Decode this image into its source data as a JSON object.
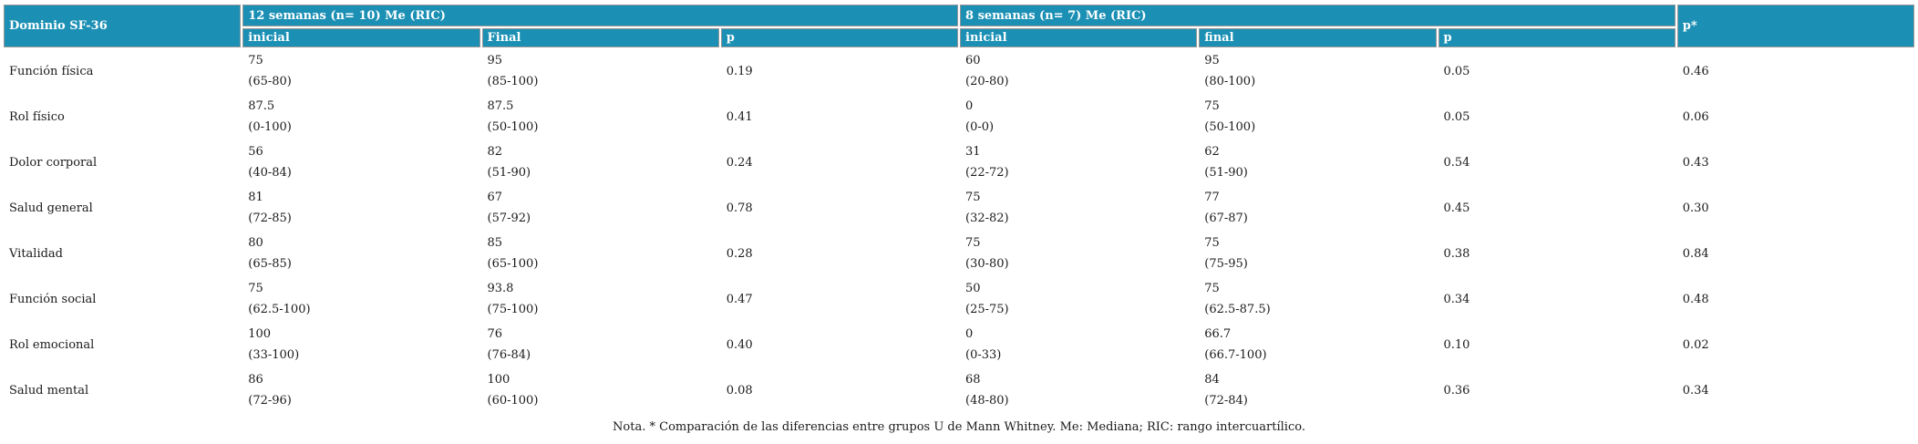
{
  "table": {
    "corner_header": "Dominio SF-36",
    "group1_header": "12 semanas (n= 10) Me (RIC)",
    "group2_header": "8 semanas (n= 7) Me (RIC)",
    "pstar_header": "p*",
    "sub_headers": {
      "g1_inicial": "inicial",
      "g1_final": "Final",
      "g1_p": "p",
      "g2_inicial": "inicial",
      "g2_final": "final",
      "g2_p": "p"
    },
    "rows": [
      {
        "domain": "Función física",
        "w12_inicial": "75",
        "w12_inicial_ric": "(65-80)",
        "w12_final": "95",
        "w12_final_ric": "(85-100)",
        "w12_p": "0.19",
        "w8_inicial": "60",
        "w8_inicial_ric": "(20-80)",
        "w8_final": "95",
        "w8_final_ric": "(80-100)",
        "w8_p": "0.05",
        "p_star": "0.46"
      },
      {
        "domain": "Rol físico",
        "w12_inicial": "87.5",
        "w12_inicial_ric": "(0-100)",
        "w12_final": "87.5",
        "w12_final_ric": "(50-100)",
        "w12_p": "0.41",
        "w8_inicial": "0",
        "w8_inicial_ric": "(0-0)",
        "w8_final": "75",
        "w8_final_ric": "(50-100)",
        "w8_p": "0.05",
        "p_star": "0.06"
      },
      {
        "domain": "Dolor corporal",
        "w12_inicial": "56",
        "w12_inicial_ric": "(40-84)",
        "w12_final": "82",
        "w12_final_ric": "(51-90)",
        "w12_p": "0.24",
        "w8_inicial": "31",
        "w8_inicial_ric": "(22-72)",
        "w8_final": "62",
        "w8_final_ric": "(51-90)",
        "w8_p": "0.54",
        "p_star": "0.43"
      },
      {
        "domain": "Salud general",
        "w12_inicial": "81",
        "w12_inicial_ric": "(72-85)",
        "w12_final": "67",
        "w12_final_ric": "(57-92)",
        "w12_p": "0.78",
        "w8_inicial": "75",
        "w8_inicial_ric": "(32-82)",
        "w8_final": "77",
        "w8_final_ric": "(67-87)",
        "w8_p": "0.45",
        "p_star": "0.30"
      },
      {
        "domain": "Vitalidad",
        "w12_inicial": "80",
        "w12_inicial_ric": "(65-85)",
        "w12_final": "85",
        "w12_final_ric": "(65-100)",
        "w12_p": "0.28",
        "w8_inicial": "75",
        "w8_inicial_ric": "(30-80)",
        "w8_final": "75",
        "w8_final_ric": "(75-95)",
        "w8_p": "0.38",
        "p_star": "0.84"
      },
      {
        "domain": "Función social",
        "w12_inicial": "75",
        "w12_inicial_ric": "(62.5-100)",
        "w12_final": "93.8",
        "w12_final_ric": "(75-100)",
        "w12_p": "0.47",
        "w8_inicial": "50",
        "w8_inicial_ric": "(25-75)",
        "w8_final": "75",
        "w8_final_ric": "(62.5-87.5)",
        "w8_p": "0.34",
        "p_star": "0.48"
      },
      {
        "domain": "Rol emocional",
        "w12_inicial": "100",
        "w12_inicial_ric": "(33-100)",
        "w12_final": "76",
        "w12_final_ric": "(76-84)",
        "w12_p": "0.40",
        "w8_inicial": "0",
        "w8_inicial_ric": "(0-33)",
        "w8_final": "66.7",
        "w8_final_ric": "(66.7-100)",
        "w8_p": "0.10",
        "p_star": "0.02"
      },
      {
        "domain": "Salud mental",
        "w12_inicial": "86",
        "w12_inicial_ric": "(72-96)",
        "w12_final": "100",
        "w12_final_ric": "(60-100)",
        "w12_p": "0.08",
        "w8_inicial": "68",
        "w8_inicial_ric": "(48-80)",
        "w8_final": "84",
        "w8_final_ric": "(72-84)",
        "w8_p": "0.36",
        "p_star": "0.34"
      }
    ]
  },
  "footnote": "Nota. * Comparación de las diferencias entre grupos U de Mann Whitney. Me: Mediana; RIC: rango intercuartílico.",
  "colors": {
    "header_bg": "#1c90b4",
    "header_text": "#ffffff",
    "body_text": "#1a1a1a",
    "header_border": "#969696"
  }
}
